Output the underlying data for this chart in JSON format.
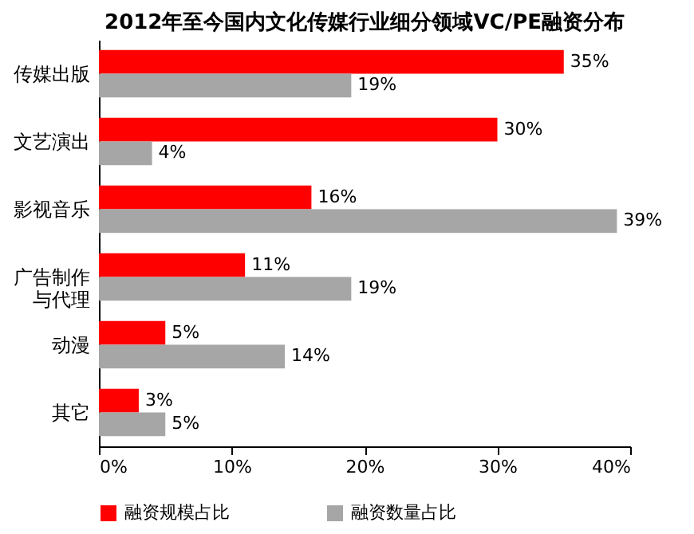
{
  "chart_data": {
    "type": "bar",
    "orientation": "horizontal",
    "title": "2012年至今国内文化传媒行业细分领域VC/PE融资分布",
    "categories": [
      "传媒出版",
      "文艺演出",
      "影视音乐",
      "广告制作与代理",
      "动漫",
      "其它"
    ],
    "series": [
      {
        "name": "融资规模占比",
        "color": "#ff0000",
        "values": [
          35,
          30,
          16,
          11,
          5,
          3
        ],
        "value_labels": [
          "35%",
          "30%",
          "16%",
          "11%",
          "5%",
          "3%"
        ]
      },
      {
        "name": "融资数量占比",
        "color": "#a6a6a6",
        "values": [
          19,
          4,
          39,
          19,
          14,
          5
        ],
        "value_labels": [
          "19%",
          "4%",
          "39%",
          "19%",
          "14%",
          "5%"
        ]
      }
    ],
    "xlim": [
      0,
      40
    ],
    "xticks": [
      {
        "value": 0,
        "label": "0%"
      },
      {
        "value": 10,
        "label": "10%"
      },
      {
        "value": 20,
        "label": "20%"
      },
      {
        "value": 30,
        "label": "30%"
      },
      {
        "value": 40,
        "label": "40%"
      }
    ],
    "legend": "bottom",
    "grid": false
  }
}
